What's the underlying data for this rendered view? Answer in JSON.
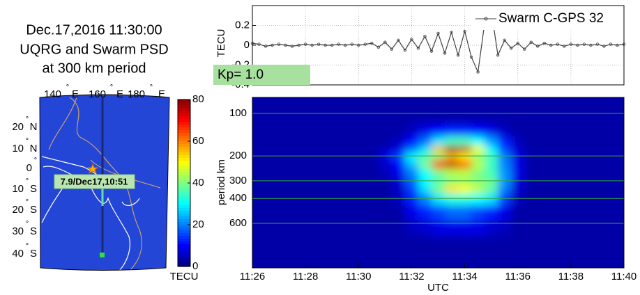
{
  "title": [
    "Dec.17,2016 11:30:00",
    "UQRG and Swarm PSD",
    "at 300 km period"
  ],
  "map": {
    "degree_symbol": "°",
    "lon_labels": [
      {
        "value": "140",
        "hemisphere": "E"
      },
      {
        "value": "160",
        "hemisphere": "E"
      },
      {
        "value": "180",
        "hemisphere": "E"
      }
    ],
    "lat_labels": [
      {
        "value": "20",
        "hemisphere": "N"
      },
      {
        "value": "10",
        "hemisphere": "N"
      },
      {
        "value": "0"
      },
      {
        "value": "10",
        "hemisphere": "S"
      },
      {
        "value": "20",
        "hemisphere": "S"
      },
      {
        "value": "30",
        "hemisphere": "S"
      },
      {
        "value": "40",
        "hemisphere": "S"
      }
    ],
    "annotation": "7.9/Dec17,10:51"
  },
  "chart_data": [
    {
      "type": "line",
      "ylabel": "TECU",
      "annotation": "Kp= 1.0",
      "grid": true,
      "xlim": [
        686,
        700
      ],
      "ylim": [
        -0.4,
        0.4
      ],
      "yticks": [
        -0.4,
        -0.2,
        0,
        0.2
      ],
      "x": [
        686,
        686.25,
        686.5,
        686.75,
        687,
        687.25,
        687.5,
        687.75,
        688,
        688.25,
        688.5,
        688.75,
        689,
        689.25,
        689.5,
        689.75,
        690,
        690.25,
        690.5,
        690.75,
        691,
        691.25,
        691.5,
        691.75,
        692,
        692.25,
        692.5,
        692.75,
        693,
        693.25,
        693.5,
        693.75,
        694,
        694.25,
        694.5,
        694.75,
        695,
        695.25,
        695.5,
        695.75,
        696,
        696.25,
        696.5,
        696.75,
        697,
        697.25,
        697.5,
        697.75,
        698,
        698.25,
        698.5,
        698.75,
        699,
        699.25,
        699.5,
        699.75,
        700
      ],
      "series": [
        {
          "name": "Swarm C-GPS 32",
          "color": "#404040",
          "values": [
            0.02,
            0.01,
            -0.01,
            0,
            0.01,
            0,
            -0.01,
            0,
            0.01,
            0,
            0.01,
            0,
            0,
            0.01,
            0,
            0.01,
            0,
            0.01,
            0.02,
            -0.02,
            0.03,
            -0.04,
            0.05,
            -0.05,
            0.06,
            -0.03,
            0.09,
            -0.06,
            0.12,
            -0.08,
            0.13,
            -0.1,
            0.14,
            -0.12,
            -0.27,
            0.22,
            0.35,
            -0.1,
            0.05,
            -0.03,
            0.02,
            -0.04,
            0.03,
            -0.01,
            0.02,
            0,
            0.01,
            -0.01,
            0.01,
            0,
            0.01,
            0,
            0.01,
            -0.01,
            0.01,
            0,
            0.01
          ]
        }
      ]
    },
    {
      "type": "heatmap",
      "xlabel": "UTC",
      "ylabel": "period km",
      "colormap": "jet",
      "yscale": "log",
      "y_inverted": true,
      "grid_color": "#3aa63a",
      "xlim": [
        686,
        700
      ],
      "xticks": [
        {
          "value": 686,
          "label": "11:26"
        },
        {
          "value": 688,
          "label": "11:28"
        },
        {
          "value": 690,
          "label": "11:30"
        },
        {
          "value": 692,
          "label": "11:32"
        },
        {
          "value": 694,
          "label": "11:34"
        },
        {
          "value": 696,
          "label": "11:36"
        },
        {
          "value": 698,
          "label": "11:38"
        },
        {
          "value": 700,
          "label": "11:40"
        }
      ],
      "ylim": [
        77,
        1240
      ],
      "yticks": [
        100,
        200,
        300,
        400,
        600
      ],
      "x": [
        691,
        691.5,
        692,
        692.5,
        693,
        693.5,
        694,
        694.5,
        695,
        695.5,
        696,
        696.5
      ],
      "y": [
        130,
        160,
        180,
        200,
        230,
        260,
        300,
        340,
        400,
        500,
        650
      ],
      "z": [
        [
          3,
          3,
          5,
          8,
          10,
          12,
          12,
          10,
          8,
          5,
          3,
          3
        ],
        [
          3,
          5,
          10,
          18,
          28,
          35,
          35,
          30,
          22,
          12,
          5,
          3
        ],
        [
          5,
          8,
          18,
          28,
          55,
          78,
          75,
          50,
          30,
          15,
          6,
          3
        ],
        [
          8,
          15,
          30,
          35,
          40,
          55,
          50,
          40,
          35,
          20,
          8,
          3
        ],
        [
          5,
          10,
          25,
          40,
          70,
          75,
          65,
          45,
          35,
          20,
          8,
          3
        ],
        [
          5,
          8,
          20,
          30,
          40,
          45,
          45,
          40,
          35,
          22,
          8,
          3
        ],
        [
          3,
          8,
          18,
          30,
          35,
          40,
          42,
          40,
          38,
          22,
          8,
          3
        ],
        [
          3,
          5,
          15,
          28,
          40,
          52,
          50,
          45,
          38,
          20,
          6,
          3
        ],
        [
          3,
          5,
          12,
          20,
          28,
          32,
          32,
          30,
          28,
          15,
          5,
          3
        ],
        [
          3,
          3,
          8,
          12,
          15,
          18,
          18,
          15,
          12,
          8,
          3,
          3
        ],
        [
          3,
          3,
          5,
          6,
          8,
          8,
          8,
          8,
          6,
          5,
          3,
          3
        ]
      ],
      "colorbar": {
        "lim": [
          0,
          80
        ],
        "ticks": [
          0,
          20,
          40,
          60,
          80
        ],
        "label": "TECU"
      }
    }
  ]
}
